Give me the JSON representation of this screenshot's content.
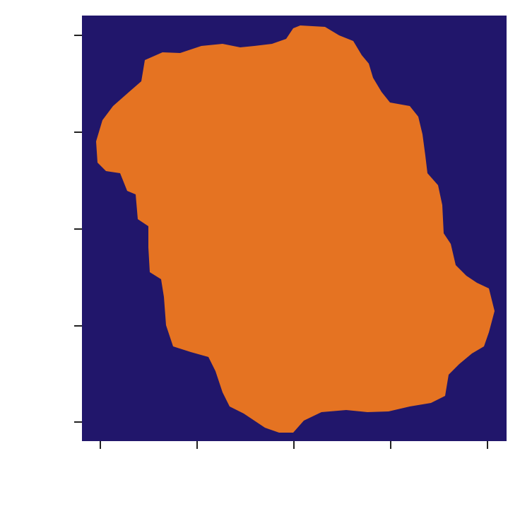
{
  "plot": {
    "background_color": "#21166b",
    "region_color": "#e57322"
  }
}
